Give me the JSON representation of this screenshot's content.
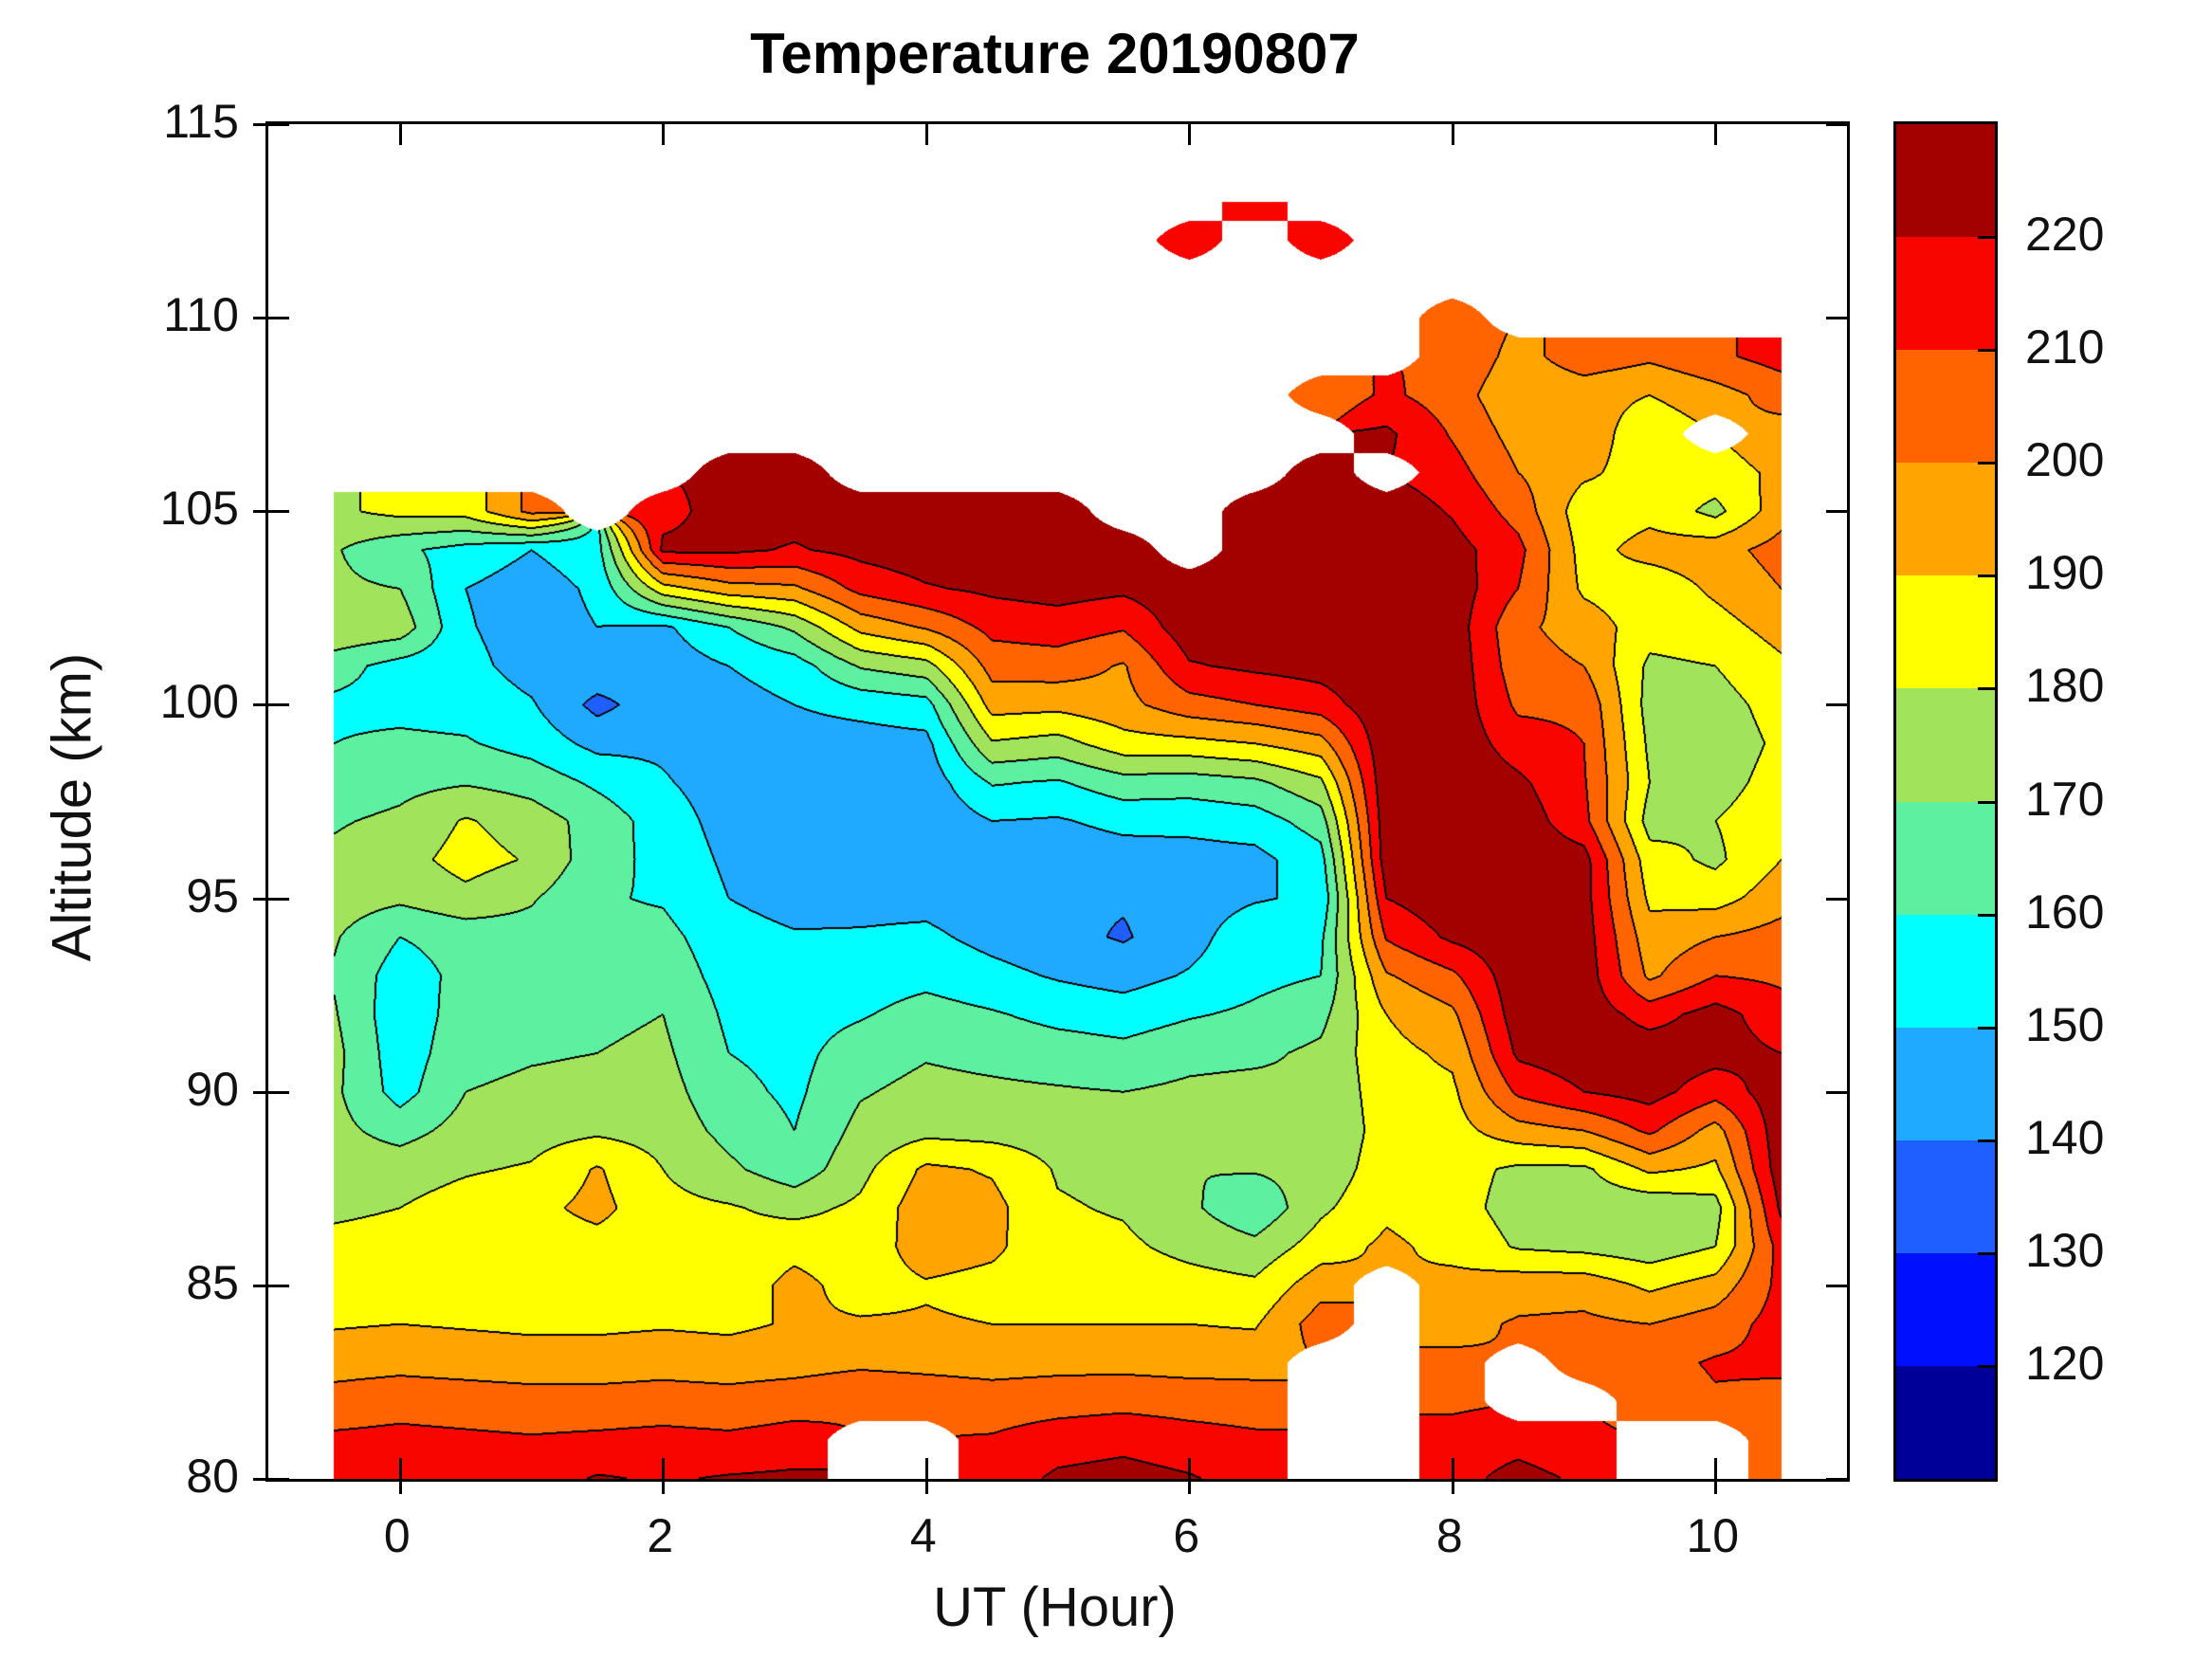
{
  "title": "Temperature 20190807",
  "labels": {
    "x": "UT (Hour)",
    "y": "Altitude (km)"
  },
  "axes": {
    "x_range": [
      -1,
      11
    ],
    "y_range": [
      80,
      115
    ],
    "x_ticks": [
      "0",
      "2",
      "4",
      "6",
      "8",
      "10"
    ],
    "x_tick_values": [
      0,
      2,
      4,
      6,
      8,
      10
    ],
    "y_ticks": [
      "80",
      "85",
      "90",
      "95",
      "100",
      "105",
      "110",
      "115"
    ],
    "y_tick_values": [
      80,
      85,
      90,
      95,
      100,
      105,
      110,
      115
    ]
  },
  "colorbar": {
    "tick_labels": [
      "220",
      "210",
      "200",
      "190",
      "180",
      "170",
      "160",
      "150",
      "140",
      "130",
      "120"
    ],
    "colors_top_to_bottom": [
      "#a30000",
      "#f90500",
      "#ff6400",
      "#ffa400",
      "#ffff00",
      "#a2e35c",
      "#5cf0a0",
      "#00ffff",
      "#1fa9ff",
      "#1f5fff",
      "#0010ff",
      "#000099"
    ]
  },
  "chart_data": {
    "type": "heatmap",
    "subtype": "filled-contour",
    "title": "Temperature 20190807",
    "xlabel": "UT (Hour)",
    "ylabel": "Altitude (km)",
    "xlim": [
      -1,
      11
    ],
    "ylim": [
      80,
      115
    ],
    "levels": [
      120,
      130,
      140,
      150,
      160,
      170,
      180,
      190,
      200,
      210,
      220
    ],
    "band_colors_low_to_high": [
      "#000099",
      "#0010ff",
      "#1f5fff",
      "#1fa9ff",
      "#00ffff",
      "#5cf0a0",
      "#a2e35c",
      "#ffff00",
      "#ffa400",
      "#ff6400",
      "#f90500",
      "#a30000"
    ],
    "nan_color": "#ffffff",
    "contour_line_color": "#000000",
    "x": [
      -0.5,
      0,
      0.5,
      1,
      1.5,
      2,
      2.5,
      3,
      3.5,
      4,
      4.5,
      5,
      5.5,
      6,
      6.5,
      7,
      7.5,
      8,
      8.5,
      9,
      9.5,
      10,
      10.5
    ],
    "y": [
      80,
      81,
      82,
      83,
      84,
      85,
      86,
      87,
      88,
      89,
      90,
      91,
      92,
      93,
      94,
      95,
      96,
      97,
      98,
      99,
      100,
      101,
      102,
      103,
      104,
      105,
      106,
      107,
      108,
      109,
      110,
      111,
      112,
      113
    ],
    "values": [
      [
        215,
        217,
        216,
        215,
        221,
        219,
        221,
        222,
        null,
        null,
        214,
        222,
        224,
        221,
        216,
        null,
        null,
        216,
        224,
        218,
        null,
        null,
        201
      ],
      [
        212,
        213,
        212,
        211,
        212,
        213,
        212,
        214,
        null,
        null,
        211,
        215,
        217,
        214,
        212,
        null,
        null,
        214,
        216,
        212,
        null,
        null,
        203
      ],
      [
        204,
        206,
        205,
        204,
        204,
        205,
        204,
        206,
        209,
        207,
        205,
        206,
        207,
        206,
        205,
        null,
        null,
        208,
        null,
        null,
        205,
        209,
        207
      ],
      [
        196,
        197,
        196,
        195,
        195,
        196,
        195,
        196,
        198,
        197,
        196,
        197,
        197,
        196,
        196,
        null,
        null,
        202,
        null,
        204,
        207,
        211,
        212
      ],
      [
        189,
        190,
        189,
        188,
        188,
        189,
        188,
        191,
        191,
        191,
        190,
        190,
        190,
        190,
        189,
        205,
        null,
        197,
        201,
        202,
        200,
        205,
        214
      ],
      [
        185,
        186,
        185,
        185,
        184,
        185,
        184,
        193,
        186,
        189,
        187,
        186,
        186,
        184,
        182,
        196,
        null,
        193,
        196,
        196,
        188,
        194,
        213
      ],
      [
        183,
        184,
        186,
        185,
        186,
        184,
        183,
        187,
        184,
        195,
        192,
        183,
        182,
        177,
        173,
        185,
        192,
        187,
        179,
        177,
        174,
        180,
        214
      ],
      [
        178,
        180,
        184,
        187,
        193,
        183,
        181,
        177,
        182,
        196,
        193,
        181,
        179,
        172,
        162,
        178,
        188,
        184,
        176,
        174,
        172,
        176,
        222
      ],
      [
        175,
        176,
        179,
        181,
        191,
        180,
        172,
        164,
        177,
        192,
        189,
        179,
        177,
        170,
        171,
        173,
        186,
        184,
        178,
        178,
        192,
        188,
        226
      ],
      [
        173,
        166,
        174,
        176,
        178,
        176,
        167,
        160,
        173,
        177,
        176,
        175,
        174,
        173,
        174,
        170,
        185,
        186,
        196,
        200,
        212,
        196,
        227
      ],
      [
        172,
        156,
        170,
        172,
        173,
        174,
        163,
        158,
        169,
        173,
        172,
        171,
        170,
        172,
        173,
        171,
        186,
        188,
        212,
        220,
        224,
        214,
        226
      ],
      [
        173,
        154,
        167,
        169,
        170,
        172,
        160,
        157,
        165,
        169,
        167,
        165,
        163,
        167,
        168,
        172,
        187,
        192,
        222,
        226,
        226,
        224,
        220
      ],
      [
        171,
        153,
        165,
        166,
        168,
        170,
        158,
        156,
        159,
        164,
        161,
        157,
        155,
        159,
        162,
        167,
        190,
        198,
        226,
        226,
        216,
        224,
        214
      ],
      [
        169,
        155,
        163,
        164,
        165,
        166,
        156,
        155,
        155,
        157,
        153,
        149,
        146,
        151,
        157,
        160,
        199,
        208,
        227,
        226,
        198,
        210,
        208
      ],
      [
        171,
        160,
        164,
        166,
        163,
        163,
        154,
        151,
        151,
        152,
        147,
        143,
        139,
        146,
        157,
        158,
        211,
        222,
        227,
        225,
        194,
        200,
        204
      ],
      [
        175,
        172,
        177,
        171,
        161,
        159,
        150,
        146,
        147,
        147,
        144,
        141,
        141,
        145,
        149,
        152,
        220,
        227,
        227,
        224,
        188,
        186,
        196
      ],
      [
        172,
        176,
        184,
        179,
        164,
        157,
        148,
        144,
        144,
        143,
        143,
        143,
        145,
        146,
        147,
        156,
        226,
        228,
        227,
        224,
        184,
        178,
        190
      ],
      [
        169,
        172,
        181,
        175,
        166,
        155,
        146,
        143,
        142,
        142,
        150,
        149,
        153,
        153,
        155,
        165,
        227,
        228,
        226,
        213,
        176,
        180,
        186
      ],
      [
        164,
        167,
        169,
        166,
        158,
        151,
        145,
        144,
        143,
        144,
        161,
        159,
        166,
        165,
        168,
        178,
        228,
        228,
        222,
        211,
        180,
        176,
        184
      ],
      [
        160,
        162,
        161,
        156,
        147,
        148,
        144,
        146,
        146,
        147,
        179,
        176,
        186,
        187,
        190,
        196,
        228,
        227,
        215,
        210,
        178,
        174,
        182
      ],
      [
        158,
        157,
        156,
        151,
        137,
        146,
        146,
        150,
        153,
        156,
        194,
        193,
        197,
        206,
        210,
        215,
        228,
        227,
        208,
        208,
        176,
        176,
        184
      ],
      [
        164,
        156,
        153,
        146,
        148,
        144,
        150,
        155,
        171,
        176,
        204,
        205,
        199,
        219,
        222,
        224,
        228,
        227,
        204,
        200,
        178,
        180,
        188
      ],
      [
        179,
        176,
        151,
        145,
        150,
        148,
        160,
        172,
        193,
        201,
        213,
        215,
        211,
        226,
        227,
        228,
        228,
        226,
        202,
        196,
        184,
        186,
        194
      ],
      [
        172,
        170,
        150,
        145,
        152,
        186,
        196,
        198,
        213,
        219,
        222,
        224,
        222,
        227,
        228,
        228,
        228,
        226,
        210,
        188,
        183,
        192,
        200
      ],
      [
        171,
        162,
        156,
        150,
        156,
        222,
        222,
        219,
        223,
        226,
        226,
        227,
        226,
        null,
        228,
        228,
        228,
        224,
        213,
        186,
        194,
        196,
        204
      ],
      [
        178,
        183,
        184,
        203,
        null,
        217,
        224,
        224,
        226,
        227,
        224,
        225,
        null,
        null,
        227,
        228,
        227,
        219,
        206,
        184,
        187,
        177,
        196
      ],
      [
        null,
        null,
        null,
        null,
        null,
        null,
        222,
        222,
        null,
        null,
        null,
        null,
        null,
        null,
        null,
        226,
        null,
        214,
        200,
        192,
        185,
        186,
        192
      ],
      [
        null,
        null,
        null,
        null,
        null,
        null,
        null,
        null,
        null,
        null,
        null,
        null,
        null,
        null,
        null,
        null,
        222,
        209,
        196,
        196,
        183,
        null,
        196
      ],
      [
        null,
        null,
        null,
        null,
        null,
        null,
        null,
        null,
        null,
        null,
        null,
        null,
        null,
        null,
        null,
        202,
        212,
        205,
        192,
        194,
        190,
        196,
        204
      ],
      [
        null,
        null,
        null,
        null,
        null,
        null,
        null,
        null,
        null,
        null,
        null,
        null,
        null,
        null,
        null,
        null,
        null,
        209,
        196,
        206,
        202,
        208,
        214
      ],
      [
        null,
        null,
        null,
        null,
        null,
        null,
        null,
        null,
        null,
        null,
        null,
        null,
        null,
        null,
        null,
        null,
        null,
        208,
        null,
        null,
        null,
        null,
        null
      ],
      [
        null,
        null,
        null,
        null,
        null,
        null,
        null,
        null,
        null,
        null,
        null,
        null,
        null,
        null,
        null,
        null,
        null,
        null,
        null,
        null,
        null,
        null,
        null
      ],
      [
        null,
        null,
        null,
        null,
        null,
        null,
        null,
        null,
        null,
        null,
        null,
        null,
        null,
        214,
        null,
        212,
        null,
        null,
        null,
        null,
        null,
        null,
        null
      ],
      [
        null,
        null,
        null,
        null,
        null,
        null,
        null,
        null,
        null,
        null,
        null,
        null,
        null,
        null,
        214,
        null,
        null,
        null,
        null,
        null,
        null,
        null,
        null
      ]
    ]
  }
}
